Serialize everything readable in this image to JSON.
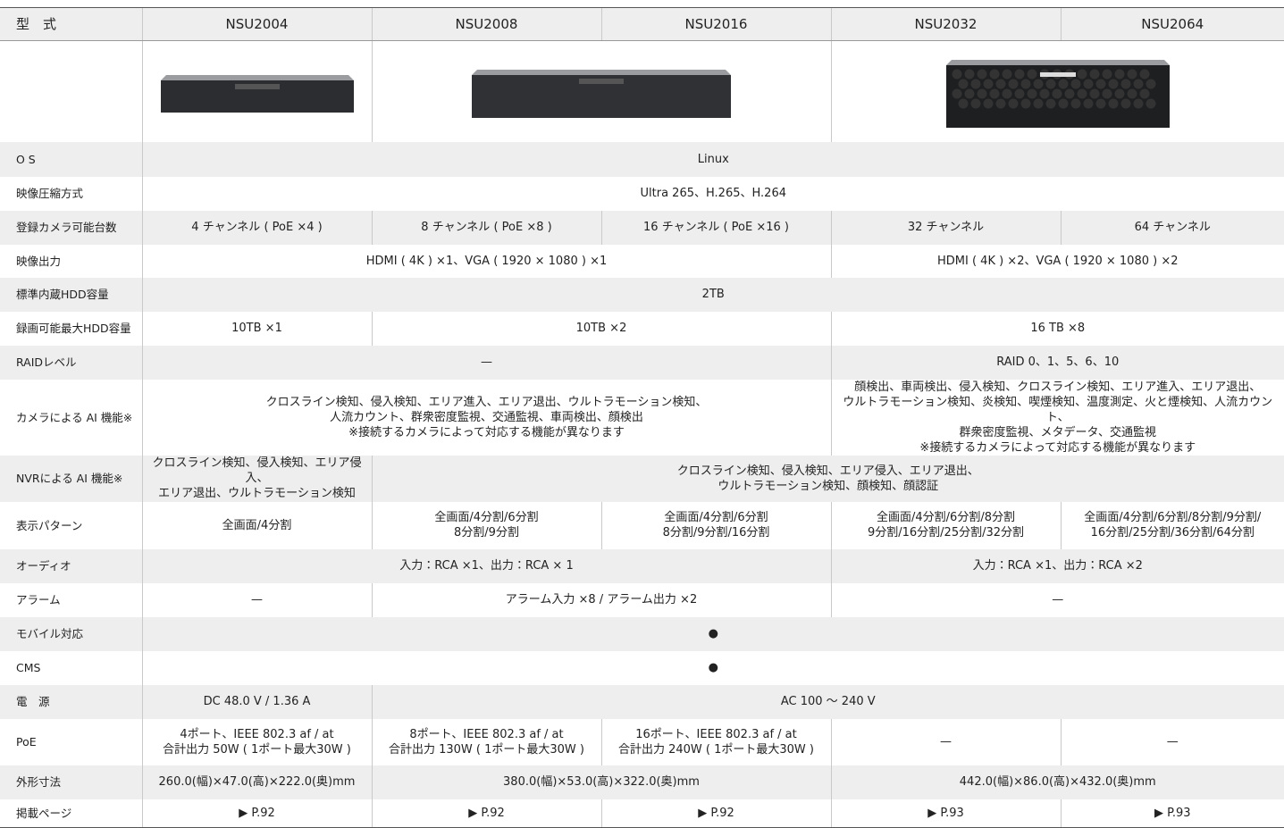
{
  "table": {
    "header": [
      "型　式",
      "NSU2004",
      "NSU2008",
      "NSU2016",
      "NSU2032",
      "NSU2064"
    ],
    "rows": [
      {
        "label": "O S",
        "cells": [
          "Linux"
        ]
      },
      {
        "label": "映像圧縮方式",
        "cells": [
          "Ultra 265、H.265、H.264"
        ]
      },
      {
        "label": "登録カメラ可能台数",
        "cells": [
          "4 チャンネル ( PoE ×4 )",
          "8 チャンネル ( PoE ×8 )",
          "16 チャンネル ( PoE ×16 )",
          "32 チャンネル",
          "64 チャンネル"
        ]
      },
      {
        "label": "映像出力",
        "cells": [
          "HDMI ( 4K ) ×1、VGA ( 1920 × 1080 ) ×1",
          "HDMI ( 4K ) ×2、VGA ( 1920 × 1080 ) ×2"
        ]
      },
      {
        "label": "標準内蔵HDD容量",
        "cells": [
          "2TB"
        ]
      },
      {
        "label": "録画可能最大HDD容量",
        "cells": [
          "10TB ×1",
          "10TB ×2",
          "16 TB ×8"
        ]
      },
      {
        "label": "RAIDレベル",
        "cells": [
          "—",
          "RAID 0、1、5、6、10"
        ]
      },
      {
        "label": "カメラによる AI 機能※",
        "cells": [
          "クロスライン検知、侵入検知、エリア進入、エリア退出、ウルトラモーション検知、\n人流カウント、群衆密度監視、交通監視、車両検出、顔検出\n※接続するカメラによって対応する機能が異なります",
          "顔検出、車両検出、侵入検知、クロスライン検知、エリア進入、エリア退出、\nウルトラモーション検知、炎検知、喫煙検知、温度測定、火と煙検知、人流カウント、\n群衆密度監視、メタデータ、交通監視\n※接続するカメラによって対応する機能が異なります"
        ]
      },
      {
        "label": "NVRによる AI 機能※",
        "cells": [
          "クロスライン検知、侵入検知、エリア侵入、\nエリア退出、ウルトラモーション検知",
          "クロスライン検知、侵入検知、エリア侵入、エリア退出、\nウルトラモーション検知、顔検知、顔認証"
        ]
      },
      {
        "label": "表示パターン",
        "cells": [
          "全画面/4分割",
          "全画面/4分割/6分割\n8分割/9分割",
          "全画面/4分割/6分割\n8分割/9分割/16分割",
          "全画面/4分割/6分割/8分割\n9分割/16分割/25分割/32分割",
          "全画面/4分割/6分割/8分割/9分割/\n16分割/25分割/36分割/64分割"
        ]
      },
      {
        "label": "オーディオ",
        "cells": [
          "入力：RCA ×1、出力：RCA × 1",
          "入力：RCA ×1、出力：RCA ×2"
        ]
      },
      {
        "label": "アラーム",
        "cells": [
          "—",
          "アラーム入力 ×8 / アラーム出力 ×2",
          "—"
        ]
      },
      {
        "label": "モバイル対応",
        "cells": [
          "●"
        ]
      },
      {
        "label": "CMS",
        "cells": [
          "●"
        ]
      },
      {
        "label": "電　源",
        "cells": [
          "DC 48.0 V / 1.36 A",
          "AC 100 ～ 240 V"
        ]
      },
      {
        "label": "PoE",
        "cells": [
          "4ポート、IEEE 802.3 af / at\n合計出力 50W ( 1ポート最大30W )",
          "8ポート、IEEE 802.3 af / at\n合計出力 130W ( 1ポート最大30W )",
          "16ポート、IEEE 802.3 af / at\n合計出力 240W ( 1ポート最大30W )",
          "—",
          "—"
        ]
      },
      {
        "label": "外形寸法",
        "cells": [
          "260.0(幅)×47.0(高)×222.0(奥)mm",
          "380.0(幅)×53.0(高)×322.0(奥)mm",
          "442.0(幅)×86.0(高)×432.0(奥)mm"
        ]
      },
      {
        "label": "掲載ページ",
        "cells": [
          "▶ P.92",
          "▶ P.92",
          "▶ P.92",
          "▶ P.93",
          "▶ P.93"
        ]
      }
    ]
  }
}
